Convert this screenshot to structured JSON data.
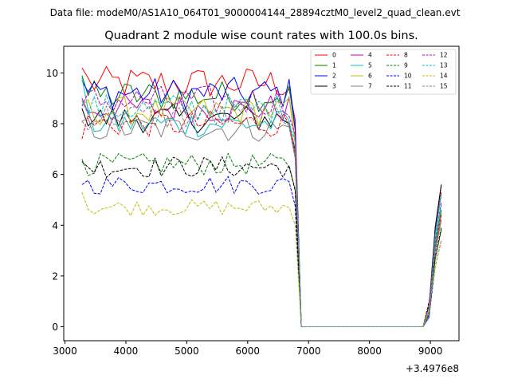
{
  "chart_data": {
    "type": "line",
    "suptitle": "Data file: modeM0/AS1A10_064T01_9000004144_28894cztM0_level2_quad_clean.evt",
    "title": "Quadrant 2 module wise count rates with 100.0s bins.",
    "xlabel": "",
    "ylabel": "",
    "x_offset_label": "+3.4976e8",
    "xlim": [
      2980,
      9470
    ],
    "ylim": [
      -0.55,
      11.05
    ],
    "x_ticks": [
      3000,
      4000,
      5000,
      6000,
      7000,
      8000,
      9000
    ],
    "y_ticks": [
      0,
      2,
      4,
      6,
      8,
      10
    ],
    "legend_position": "top-right",
    "legend_columns": 4,
    "x": [
      3280,
      3380,
      3480,
      3580,
      3680,
      3780,
      3880,
      3980,
      4080,
      4180,
      4280,
      4380,
      4480,
      4580,
      4680,
      4780,
      4880,
      4980,
      5080,
      5180,
      5280,
      5380,
      5480,
      5580,
      5680,
      5780,
      5880,
      5980,
      6080,
      6180,
      6280,
      6380,
      6480,
      6580,
      6680,
      6780,
      6880,
      6980,
      7080,
      7180,
      7280,
      7380,
      7480,
      7580,
      7680,
      7780,
      7880,
      7980,
      8080,
      8180,
      8280,
      8380,
      8480,
      8580,
      8680,
      8780,
      8880,
      8980,
      9080,
      9180
    ],
    "series": [
      {
        "name": "0",
        "color": "#ff0000",
        "style": "solid",
        "level": 9.6,
        "start": 10.2,
        "end": 5.3
      },
      {
        "name": "1",
        "color": "#008000",
        "style": "solid",
        "level": 9.1,
        "start": 9.9,
        "end": 4.6
      },
      {
        "name": "2",
        "color": "#0000ff",
        "style": "solid",
        "level": 9.2,
        "start": 9.7,
        "end": 5.6
      },
      {
        "name": "3",
        "color": "#000000",
        "style": "solid",
        "level": 8.2,
        "start": 8.6,
        "end": 5.6
      },
      {
        "name": "4",
        "color": "#bf00bf",
        "style": "solid",
        "level": 8.6,
        "start": 9.0,
        "end": 4.4
      },
      {
        "name": "5",
        "color": "#00bfbf",
        "style": "solid",
        "level": 8.0,
        "start": 9.8,
        "end": 5.2
      },
      {
        "name": "6",
        "color": "#bfbf00",
        "style": "solid",
        "level": 8.5,
        "start": 8.7,
        "end": 4.4
      },
      {
        "name": "7",
        "color": "#808080",
        "style": "solid",
        "level": 7.8,
        "start": 8.1,
        "end": 4.2
      },
      {
        "name": "8",
        "color": "#ff0000",
        "style": "dashed",
        "level": 8.0,
        "start": 7.4,
        "end": 4.4
      },
      {
        "name": "9",
        "color": "#008000",
        "style": "dashed",
        "level": 6.4,
        "start": 6.6,
        "end": 3.8
      },
      {
        "name": "10",
        "color": "#0000ff",
        "style": "dashed",
        "level": 5.6,
        "start": 5.6,
        "end": 3.4
      },
      {
        "name": "11",
        "color": "#000000",
        "style": "dashed",
        "level": 6.3,
        "start": 6.5,
        "end": 3.9
      },
      {
        "name": "12",
        "color": "#bf00bf",
        "style": "dashed",
        "level": 8.9,
        "start": 8.7,
        "end": 4.9
      },
      {
        "name": "13",
        "color": "#00bfbf",
        "style": "dashed",
        "level": 8.6,
        "start": 8.9,
        "end": 4.8
      },
      {
        "name": "14",
        "color": "#bfbf00",
        "style": "dashed",
        "level": 4.7,
        "start": 5.3,
        "end": 3.4
      },
      {
        "name": "15",
        "color": "#808080",
        "style": "dashed",
        "level": 8.3,
        "start": 8.1,
        "end": 4.5
      }
    ],
    "gap_start": 6780,
    "gap_end": 8980
  }
}
